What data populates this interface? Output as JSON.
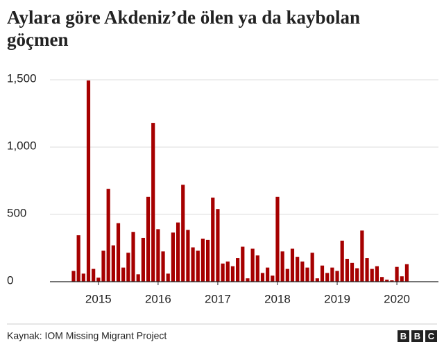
{
  "chart_data": {
    "type": "bar",
    "title_lines": [
      "Aylara göre Akdeniz’de ölen ya da kaybolan",
      "göçmen"
    ],
    "categories": [
      null,
      null,
      null,
      null,
      null,
      "2015",
      null,
      null,
      null,
      null,
      null,
      null,
      null,
      null,
      null,
      null,
      null,
      "2016",
      null,
      null,
      null,
      null,
      null,
      null,
      null,
      null,
      null,
      null,
      null,
      "2017",
      null,
      null,
      null,
      null,
      null,
      null,
      null,
      null,
      null,
      null,
      null,
      "2018",
      null,
      null,
      null,
      null,
      null,
      null,
      null,
      null,
      null,
      null,
      null,
      "2019",
      null,
      null,
      null,
      null,
      null,
      null,
      null,
      null,
      null,
      null,
      null,
      "2020",
      null,
      null
    ],
    "values": [
      80,
      345,
      60,
      1495,
      95,
      30,
      230,
      690,
      270,
      435,
      105,
      215,
      370,
      55,
      325,
      630,
      1180,
      390,
      225,
      60,
      365,
      440,
      720,
      385,
      255,
      230,
      320,
      310,
      625,
      540,
      135,
      150,
      115,
      175,
      260,
      25,
      245,
      195,
      65,
      105,
      45,
      630,
      225,
      95,
      245,
      185,
      150,
      105,
      215,
      25,
      120,
      65,
      105,
      80,
      305,
      170,
      140,
      100,
      380,
      175,
      95,
      115,
      35,
      15,
      10,
      110,
      40,
      130
    ],
    "color": "#a60000",
    "ylim": [
      0,
      1600
    ],
    "yticks": [
      0,
      {
        "value": 500,
        "label": "500"
      },
      {
        "value": 1000,
        "label": "1,000"
      },
      {
        "value": 1500,
        "label": "1,500"
      }
    ],
    "grid": true,
    "source": "Kaynak: IOM Missing Migrant Project",
    "logo": [
      "B",
      "B",
      "C"
    ]
  }
}
